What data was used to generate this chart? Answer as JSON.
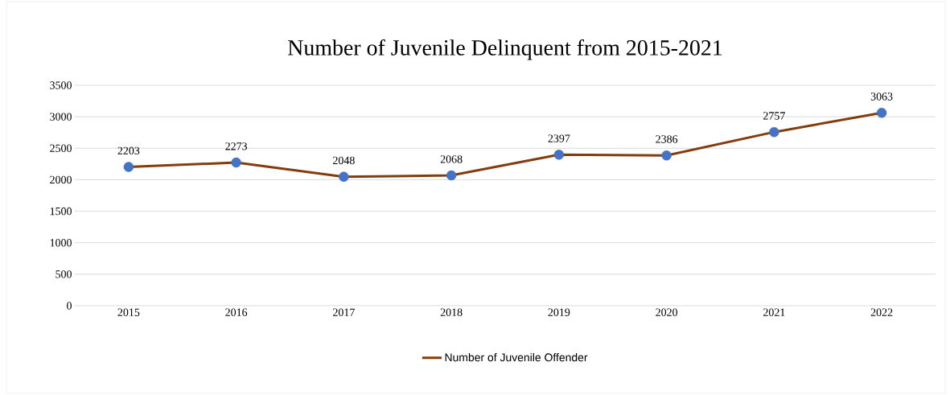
{
  "chart_data": {
    "type": "line",
    "title": "Number of Juvenile Delinquent from 2015-2021",
    "categories": [
      "2015",
      "2016",
      "2017",
      "2018",
      "2019",
      "2020",
      "2021",
      "2022"
    ],
    "series": [
      {
        "name": "Number  of Juvenile Offender",
        "color": "#843c0c",
        "colors": [
          "#4472c4",
          "#4472c4",
          "#4472c4",
          "#4472c4",
          "#4472c4",
          "#4472c4",
          "#4472c4",
          "#4472c4"
        ],
        "values": [
          2203,
          2273,
          2048,
          2068,
          2397,
          2386,
          2757,
          3063
        ]
      }
    ],
    "ylim": [
      0,
      3500
    ],
    "yticks": [
      0,
      500,
      1000,
      1500,
      2000,
      2500,
      3000,
      3500
    ],
    "grid": "y",
    "legend": "bottom",
    "marker": "circle",
    "line_style": "solid",
    "data_labels": true
  }
}
